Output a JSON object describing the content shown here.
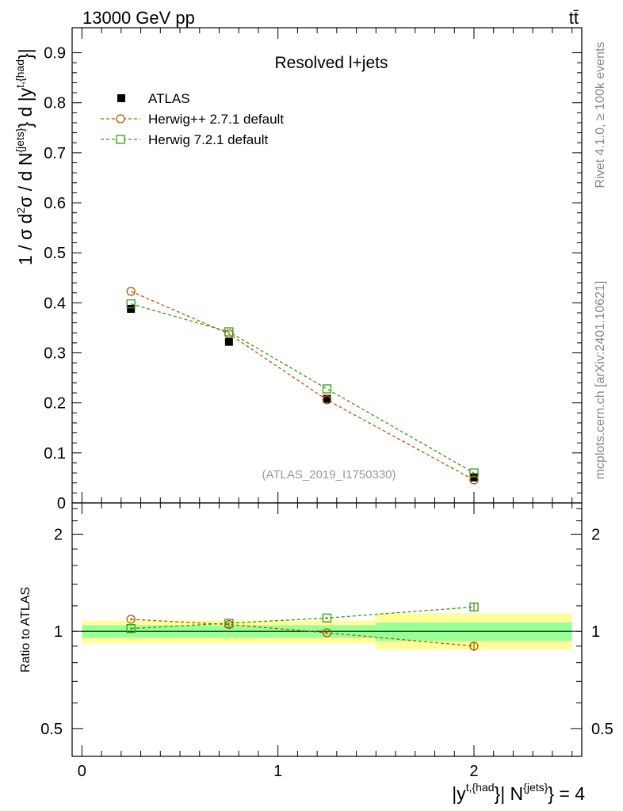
{
  "header": {
    "energy_label": "13000 GeV pp",
    "process_label": "tt̄"
  },
  "side_labels": {
    "rivet": "Rivet 4.1.0, ≥ 100k events",
    "mcplots": "mcplots.cern.ch [arXiv:2401.10621]"
  },
  "colors": {
    "atlas": "#000000",
    "herwigpp": "#b35900",
    "herwig7": "#3a9a10",
    "band_inner": "#99ff99",
    "band_outer": "#ffff99"
  },
  "chart_data": [
    {
      "type": "scatter",
      "title": "Resolved l+jets",
      "watermark": "(ATLAS_2019_I1750330)",
      "ylabel": "1 / σ d²σ / d N{jets} d |y t,{had}|",
      "xlim": [
        -0.05,
        2.55
      ],
      "ylim": [
        0,
        0.95
      ],
      "yticks": [
        {
          "v": 0,
          "t": "0"
        },
        {
          "v": 0.1,
          "t": "0.1"
        },
        {
          "v": 0.2,
          "t": "0.2"
        },
        {
          "v": 0.3,
          "t": "0.3"
        },
        {
          "v": 0.4,
          "t": "0.4"
        },
        {
          "v": 0.5,
          "t": "0.5"
        },
        {
          "v": 0.6,
          "t": "0.6"
        },
        {
          "v": 0.7,
          "t": "0.7"
        },
        {
          "v": 0.8,
          "t": "0.8"
        },
        {
          "v": 0.9,
          "t": "0.9"
        }
      ],
      "bins": [
        [
          0,
          0.5
        ],
        [
          0.5,
          1.0
        ],
        [
          1.0,
          1.5
        ],
        [
          1.5,
          2.5
        ]
      ],
      "x": [
        0.25,
        0.75,
        1.25,
        2.0
      ],
      "series": [
        {
          "name": "ATLAS",
          "marker": "filled-square",
          "values": [
            0.388,
            0.322,
            0.208,
            0.051
          ]
        },
        {
          "name": "Herwig++ 2.7.1 default",
          "marker": "open-circle",
          "dashed": true,
          "values": [
            0.423,
            0.338,
            0.206,
            0.046
          ]
        },
        {
          "name": "Herwig 7.2.1 default",
          "marker": "open-square",
          "dashed": true,
          "values": [
            0.398,
            0.342,
            0.228,
            0.06
          ]
        }
      ],
      "legend_position": "top-left"
    },
    {
      "type": "scatter",
      "ylabel": "Ratio to ATLAS",
      "xlabel": "|y t,{had}| N{jets} = 4",
      "log_y": true,
      "ylim": [
        0.41,
        2.5
      ],
      "yticks": [
        {
          "v": 0.5,
          "t": "0.5"
        },
        {
          "v": 1,
          "t": "1"
        },
        {
          "v": 2,
          "t": "2"
        }
      ],
      "xticks": [
        {
          "v": 0,
          "t": "0"
        },
        {
          "v": 1,
          "t": "1"
        },
        {
          "v": 2,
          "t": "2"
        }
      ],
      "bands": [
        {
          "x": [
            0,
            0.5
          ],
          "inner": [
            0.955,
            1.045
          ],
          "outer": [
            0.92,
            1.08
          ]
        },
        {
          "x": [
            0.5,
            1.0
          ],
          "inner": [
            0.955,
            1.045
          ],
          "outer": [
            0.92,
            1.08
          ]
        },
        {
          "x": [
            1.0,
            1.5
          ],
          "inner": [
            0.955,
            1.045
          ],
          "outer": [
            0.92,
            1.08
          ]
        },
        {
          "x": [
            1.5,
            2.5
          ],
          "inner": [
            0.935,
            1.065
          ],
          "outer": [
            0.88,
            1.14
          ]
        }
      ],
      "x": [
        0.25,
        0.75,
        1.25,
        2.0
      ],
      "series": [
        {
          "name": "Herwig++ 2.7.1 default",
          "values": [
            1.09,
            1.05,
            0.99,
            0.9
          ],
          "errors": [
            0.01,
            0.01,
            0.01,
            0.03
          ]
        },
        {
          "name": "Herwig 7.2.1 default",
          "values": [
            1.02,
            1.06,
            1.1,
            1.19
          ],
          "errors": [
            0.01,
            0.01,
            0.01,
            0.03
          ]
        }
      ]
    }
  ]
}
